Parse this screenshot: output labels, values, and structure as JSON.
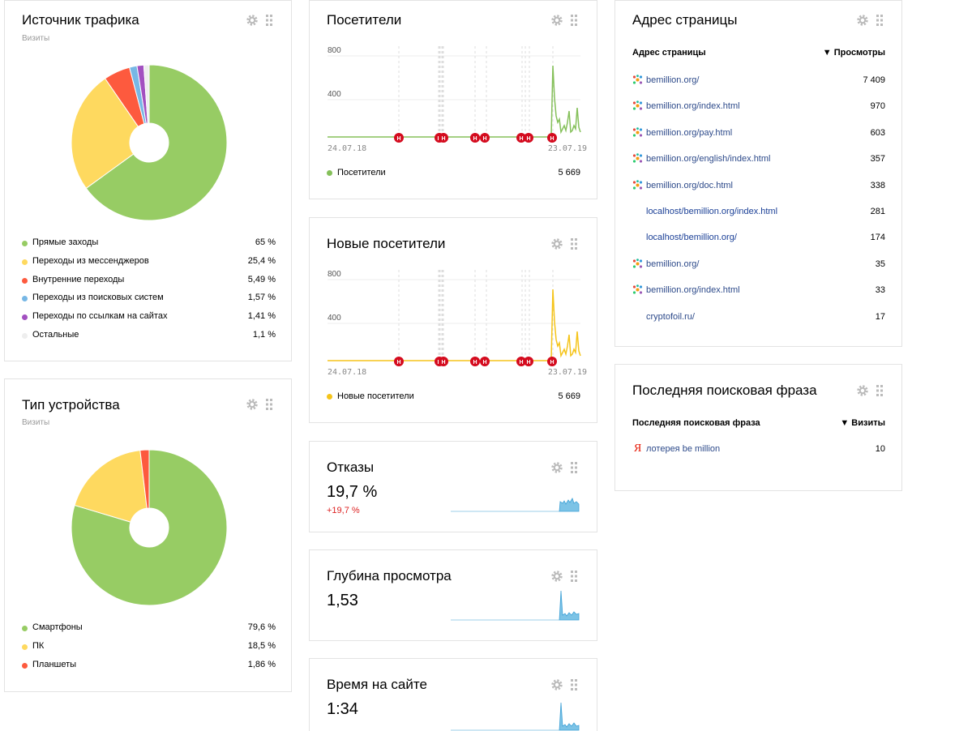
{
  "traffic_source": {
    "title": "Источник трафика",
    "subtitle": "Визиты",
    "legend": [
      {
        "label": "Прямые заходы",
        "value": "65 %",
        "color": "#97cc64"
      },
      {
        "label": "Переходы из мессенджеров",
        "value": "25,4 %",
        "color": "#fed95f"
      },
      {
        "label": "Внутренние переходы",
        "value": "5,49 %",
        "color": "#fd5a3e"
      },
      {
        "label": "Переходы из поисковых систем",
        "value": "1,57 %",
        "color": "#77b7e5"
      },
      {
        "label": "Переходы по ссылкам на сайтах",
        "value": "1,41 %",
        "color": "#a250c0"
      },
      {
        "label": "Остальные",
        "value": "1,1 %",
        "color": "#eeeeee"
      }
    ]
  },
  "device_type": {
    "title": "Тип устройства",
    "subtitle": "Визиты",
    "legend": [
      {
        "label": "Смартфоны",
        "value": "79,6 %",
        "color": "#97cc64"
      },
      {
        "label": "ПК",
        "value": "18,5 %",
        "color": "#fed95f"
      },
      {
        "label": "Планшеты",
        "value": "1,86 %",
        "color": "#fd5a3e"
      }
    ]
  },
  "visitors": {
    "title": "Посетители",
    "y_ticks": [
      "800",
      "400"
    ],
    "date_start": "24.07.18",
    "date_end": "23.07.19",
    "series_label": "Посетители",
    "total": "5 669",
    "color": "#85c05a"
  },
  "new_visitors": {
    "title": "Новые посетители",
    "y_ticks": [
      "800",
      "400"
    ],
    "date_start": "24.07.18",
    "date_end": "23.07.19",
    "series_label": "Новые посетители",
    "total": "5 669",
    "color": "#f5c41a"
  },
  "annotation_marker": "Н",
  "bounces": {
    "title": "Отказы",
    "value": "19,7 %",
    "delta": "+19,7 %"
  },
  "depth": {
    "title": "Глубина просмотра",
    "value": "1,53"
  },
  "time_on_site": {
    "title": "Время на сайте",
    "value": "1:34"
  },
  "page_address": {
    "title": "Адрес страницы",
    "col_name": "Адрес страницы",
    "col_metric": "▼ Просмотры",
    "rows": [
      {
        "url": "bemillion.org/",
        "views": "7 409"
      },
      {
        "url": "bemillion.org/index.html",
        "views": "970"
      },
      {
        "url": "bemillion.org/pay.html",
        "views": "603"
      },
      {
        "url": "bemillion.org/english/index.html",
        "views": "357"
      },
      {
        "url": "bemillion.org/doc.html",
        "views": "338"
      },
      {
        "url": "localhost/bemillion.org/index.html",
        "views": "281"
      },
      {
        "url": "localhost/bemillion.org/",
        "views": "174"
      },
      {
        "url": "bemillion.org/",
        "views": "35"
      },
      {
        "url": "bemillion.org/index.html",
        "views": "33"
      },
      {
        "url": "cryptofoil.ru/",
        "views": "17"
      }
    ]
  },
  "last_search": {
    "title": "Последняя поисковая фраза",
    "col_name": "Последняя поисковая фраза",
    "col_metric": "▼ Визиты",
    "rows": [
      {
        "phrase": "лотерея be million",
        "visits": "10"
      }
    ]
  }
}
